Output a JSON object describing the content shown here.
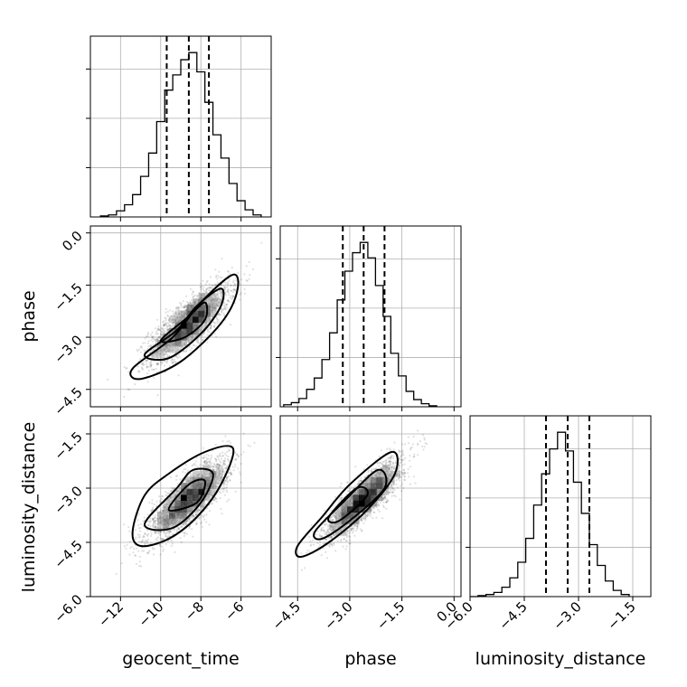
{
  "chart_data": {
    "type": "corner",
    "parameters": [
      {
        "name": "geocent_time",
        "axis_label": "geocent_time",
        "range": [
          -13.5,
          -4.5
        ],
        "ticks": [
          -12,
          -10,
          -8,
          -6
        ],
        "tick_labels": [
          "−12",
          "−10",
          "−8",
          "−6"
        ],
        "quantiles": [
          -9.7,
          -8.6,
          -7.6
        ],
        "mean": -8.6,
        "sd": 1.0
      },
      {
        "name": "phase",
        "axis_label": "phase",
        "range": [
          -5.0,
          0.2
        ],
        "ticks": [
          -4.5,
          -3.0,
          -1.5,
          0.0
        ],
        "tick_labels": [
          "−4.5",
          "−3.0",
          "−1.5",
          "0.0"
        ],
        "quantiles": [
          -3.2,
          -2.6,
          -2.0
        ],
        "mean": -2.6,
        "sd": 0.55
      },
      {
        "name": "luminosity_distance",
        "axis_label": "luminosity_distance",
        "range": [
          -6.0,
          -1.0
        ],
        "ticks": [
          -6.0,
          -4.5,
          -3.0,
          -1.5
        ],
        "tick_labels": [
          "−6.0",
          "−4.5",
          "−3.0",
          "−1.5"
        ],
        "quantiles": [
          -3.9,
          -3.3,
          -2.7
        ],
        "mean": -3.3,
        "sd": 0.55
      }
    ],
    "histograms": [
      {
        "param": "geocent_time",
        "bin_edges": [
          -13.0,
          -12.6,
          -12.2,
          -11.8,
          -11.4,
          -11.0,
          -10.6,
          -10.2,
          -9.8,
          -9.4,
          -9.0,
          -8.6,
          -8.2,
          -7.8,
          -7.4,
          -7.0,
          -6.6,
          -6.2,
          -5.8,
          -5.4,
          -5.0
        ],
        "counts": [
          1,
          2,
          6,
          12,
          22,
          40,
          63,
          94,
          125,
          140,
          155,
          162,
          143,
          113,
          81,
          58,
          33,
          16,
          7,
          2
        ]
      },
      {
        "param": "phase",
        "bin_edges": [
          -4.9,
          -4.68,
          -4.46,
          -4.24,
          -4.02,
          -3.8,
          -3.58,
          -3.36,
          -3.14,
          -2.92,
          -2.7,
          -2.48,
          -2.26,
          -2.04,
          -1.82,
          -1.6,
          -1.38,
          -1.16,
          -0.94,
          -0.72,
          -0.5
        ],
        "counts": [
          2,
          4,
          8,
          17,
          28,
          46,
          72,
          104,
          132,
          150,
          160,
          145,
          118,
          88,
          52,
          30,
          15,
          7,
          3,
          1
        ]
      },
      {
        "param": "luminosity_distance",
        "bin_edges": [
          -6.0,
          -5.78,
          -5.56,
          -5.34,
          -5.12,
          -4.9,
          -4.68,
          -4.46,
          -4.24,
          -4.02,
          -3.8,
          -3.58,
          -3.36,
          -3.14,
          -2.92,
          -2.7,
          -2.48,
          -2.26,
          -2.04,
          -1.82,
          -1.6
        ],
        "counts": [
          0,
          1,
          2,
          4,
          9,
          18,
          33,
          56,
          88,
          118,
          142,
          158,
          140,
          110,
          80,
          50,
          30,
          15,
          6,
          2
        ]
      }
    ],
    "pairs": [
      {
        "x": "geocent_time",
        "y": "phase",
        "correlation": 0.8,
        "contours": [
          [
            [
              -11.4,
              -3.9
            ],
            [
              -9.4,
              -3.0
            ],
            [
              -8.0,
              -2.0
            ],
            [
              -6.4,
              -1.2
            ],
            [
              -6.2,
              -1.7
            ],
            [
              -7.0,
              -2.6
            ],
            [
              -9.0,
              -3.7
            ],
            [
              -11.0,
              -4.2
            ]
          ],
          [
            [
              -10.8,
              -3.5
            ],
            [
              -9.2,
              -2.8
            ],
            [
              -8.2,
              -2.1
            ],
            [
              -7.0,
              -1.6
            ],
            [
              -7.0,
              -2.1
            ],
            [
              -8.0,
              -2.9
            ],
            [
              -9.6,
              -3.6
            ]
          ],
          [
            [
              -10.0,
              -3.1
            ],
            [
              -8.6,
              -2.4
            ],
            [
              -7.8,
              -2.0
            ],
            [
              -7.8,
              -2.5
            ],
            [
              -8.8,
              -3.0
            ]
          ]
        ]
      },
      {
        "x": "geocent_time",
        "y": "luminosity_distance",
        "correlation": 0.8,
        "contours": [
          [
            [
              -11.4,
              -4.2
            ],
            [
              -10.8,
              -3.2
            ],
            [
              -9.6,
              -2.6
            ],
            [
              -7.8,
              -2.0
            ],
            [
              -6.4,
              -1.9
            ],
            [
              -7.0,
              -2.9
            ],
            [
              -8.2,
              -3.8
            ],
            [
              -9.6,
              -4.4
            ],
            [
              -11.0,
              -4.6
            ]
          ],
          [
            [
              -10.8,
              -4.0
            ],
            [
              -9.2,
              -3.0
            ],
            [
              -8.4,
              -2.5
            ],
            [
              -7.4,
              -2.6
            ],
            [
              -8.0,
              -3.4
            ],
            [
              -9.4,
              -4.1
            ]
          ],
          [
            [
              -9.6,
              -3.6
            ],
            [
              -8.6,
              -2.9
            ],
            [
              -7.8,
              -2.8
            ],
            [
              -8.2,
              -3.4
            ]
          ]
        ]
      },
      {
        "x": "phase",
        "y": "luminosity_distance",
        "correlation": 0.85,
        "contours": [
          [
            [
              -4.5,
              -4.6
            ],
            [
              -3.8,
              -3.8
            ],
            [
              -3.0,
              -2.9
            ],
            [
              -1.8,
              -2.0
            ],
            [
              -1.7,
              -2.6
            ],
            [
              -2.5,
              -3.6
            ],
            [
              -3.6,
              -4.5
            ],
            [
              -4.4,
              -4.9
            ]
          ],
          [
            [
              -4.0,
              -4.2
            ],
            [
              -3.2,
              -3.4
            ],
            [
              -2.2,
              -2.5
            ],
            [
              -2.0,
              -3.0
            ],
            [
              -3.0,
              -3.9
            ],
            [
              -3.8,
              -4.4
            ]
          ],
          [
            [
              -3.6,
              -3.8
            ],
            [
              -2.8,
              -3.0
            ],
            [
              -2.5,
              -3.2
            ],
            [
              -3.3,
              -3.9
            ]
          ]
        ]
      }
    ],
    "samples_per_panel": 2600,
    "grid": true,
    "colors": {
      "line": "#000000",
      "grid": "#b0b0b0",
      "points": "#000000",
      "density_max": "#000000"
    }
  }
}
